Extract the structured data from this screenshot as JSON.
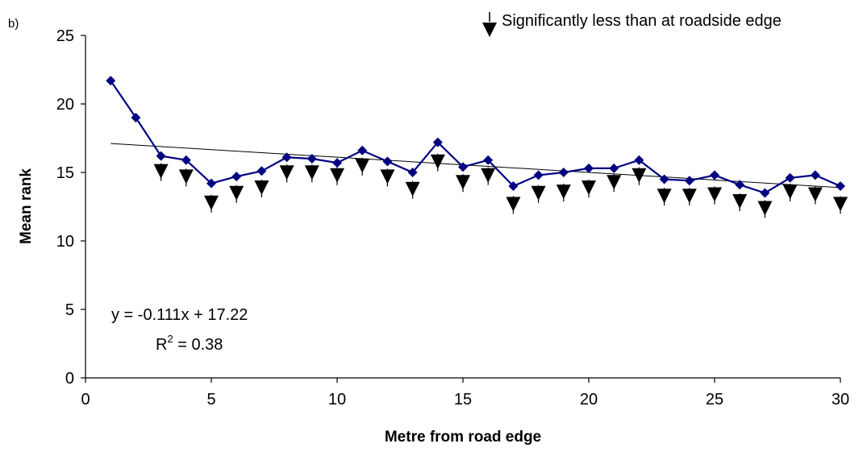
{
  "panel_label": "b)",
  "legend": {
    "label": "Significantly less than at roadside edge",
    "marker": "down-triangle-with-stem"
  },
  "equation": {
    "line1": "y = -0.111x + 17.22",
    "r2_prefix": "R",
    "r2_sup": "2",
    "r2_suffix": " = 0.38"
  },
  "colors": {
    "series": "#000080",
    "trend": "#000000",
    "marker_sig": "#000000"
  },
  "chart_data": {
    "type": "line",
    "title": "",
    "xlabel": "Metre from road edge",
    "ylabel": "Mean rank",
    "xlim": [
      0,
      30
    ],
    "ylim": [
      0,
      25
    ],
    "xticks": [
      0,
      5,
      10,
      15,
      20,
      25,
      30
    ],
    "yticks": [
      0,
      5,
      10,
      15,
      20,
      25
    ],
    "grid": false,
    "legend_position": "top-right",
    "series": [
      {
        "x": [
          1,
          2,
          3,
          4,
          5,
          6,
          7,
          8,
          9,
          10,
          11,
          12,
          13,
          14,
          15,
          16,
          17,
          18,
          19,
          20,
          21,
          22,
          23,
          24,
          25,
          26,
          27,
          28,
          29,
          30
        ],
        "values": [
          21.7,
          19.0,
          16.2,
          15.9,
          14.2,
          14.7,
          15.1,
          16.1,
          16.0,
          15.7,
          16.6,
          15.8,
          15.0,
          17.2,
          15.4,
          15.9,
          14.0,
          14.8,
          15.0,
          15.3,
          15.3,
          15.9,
          14.5,
          14.4,
          14.8,
          14.1,
          13.5,
          14.6,
          14.8,
          14.0
        ],
        "marker": "diamond"
      }
    ],
    "significant_points": {
      "x": [
        3,
        4,
        5,
        6,
        7,
        8,
        9,
        10,
        11,
        12,
        13,
        14,
        15,
        16,
        17,
        18,
        19,
        20,
        21,
        22,
        23,
        24,
        25,
        26,
        27,
        28,
        29,
        30
      ],
      "values": [
        15.2,
        14.8,
        12.9,
        13.6,
        14.0,
        15.1,
        15.1,
        14.9,
        15.6,
        14.8,
        13.9,
        15.9,
        14.4,
        14.9,
        12.8,
        13.6,
        13.7,
        14.0,
        14.4,
        14.9,
        13.4,
        13.4,
        13.5,
        13.0,
        12.5,
        13.7,
        13.5,
        12.8
      ]
    },
    "trendline": {
      "slope": -0.111,
      "intercept": 17.22,
      "x_range": [
        1,
        30
      ]
    }
  }
}
